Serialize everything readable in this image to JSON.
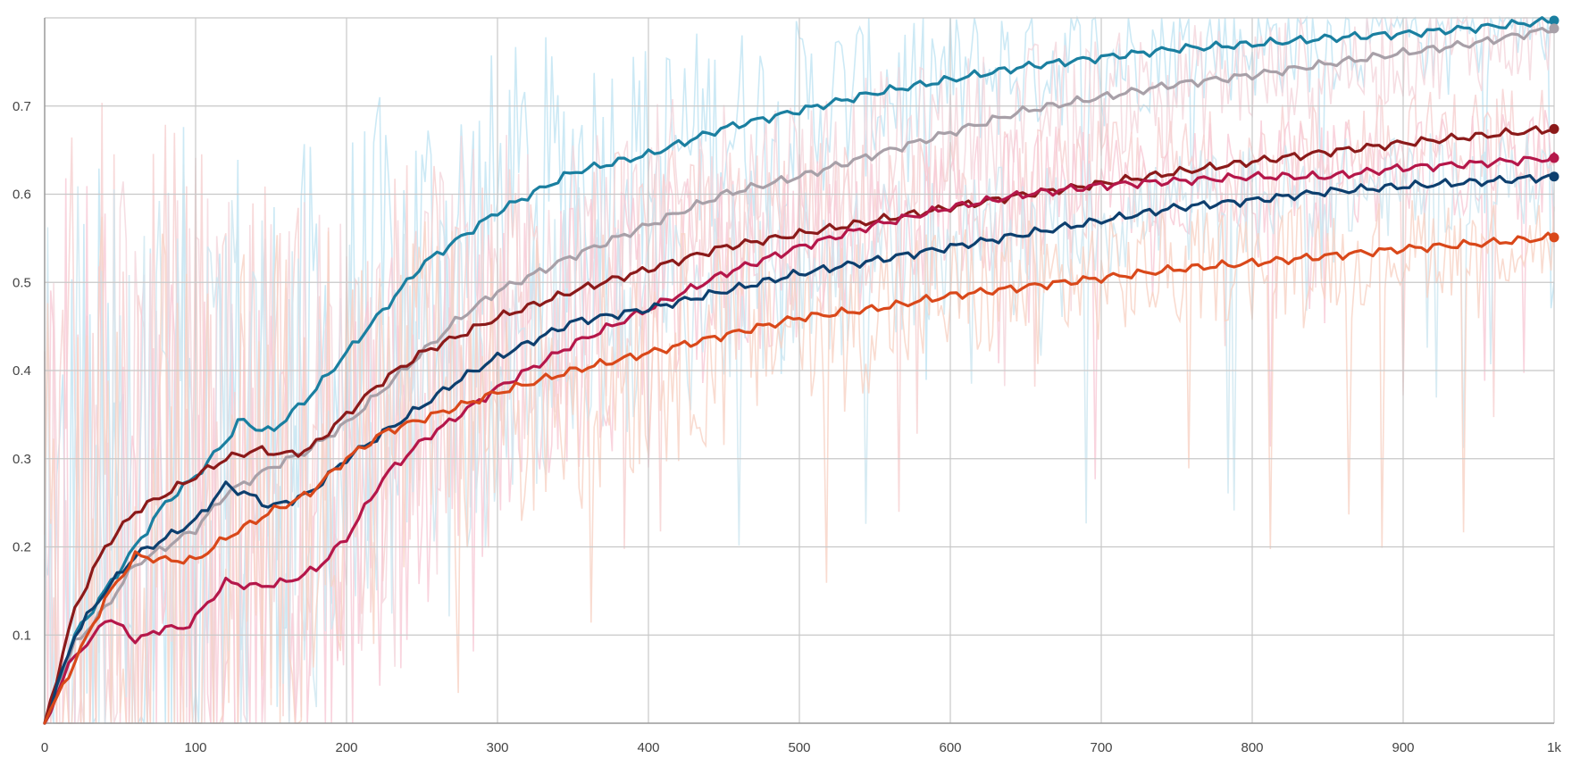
{
  "chart_data": {
    "type": "line",
    "title": "",
    "xlabel": "",
    "ylabel": "",
    "xlim": [
      0,
      1000
    ],
    "ylim": [
      0,
      0.8
    ],
    "grid": true,
    "legend": "none",
    "x_ticks": [
      0,
      100,
      200,
      300,
      400,
      500,
      600,
      700,
      800,
      900,
      1000
    ],
    "x_tick_labels": [
      "0",
      "100",
      "200",
      "300",
      "400",
      "500",
      "600",
      "700",
      "800",
      "900",
      "1k"
    ],
    "y_ticks": [
      0.1,
      0.2,
      0.3,
      0.4,
      0.5,
      0.6,
      0.7
    ],
    "y_tick_labels": [
      "0.1",
      "0.2",
      "0.3",
      "0.4",
      "0.5",
      "0.6",
      "0.7"
    ],
    "series": [
      {
        "color": "#1a7fa0",
        "raw_color": "#bfe3f2",
        "x": [
          0,
          20,
          40,
          60,
          80,
          100,
          120,
          130,
          140,
          150,
          175,
          200,
          225,
          250,
          275,
          300,
          350,
          400,
          450,
          500,
          550,
          600,
          650,
          700,
          750,
          800,
          850,
          900,
          950,
          1000
        ],
        "y": [
          0,
          0.1,
          0.15,
          0.2,
          0.25,
          0.28,
          0.32,
          0.345,
          0.335,
          0.33,
          0.37,
          0.42,
          0.47,
          0.52,
          0.55,
          0.58,
          0.625,
          0.645,
          0.675,
          0.695,
          0.715,
          0.73,
          0.745,
          0.755,
          0.765,
          0.77,
          0.777,
          0.782,
          0.789,
          0.797
        ]
      },
      {
        "color": "#a8a0a8",
        "raw_color": "#f4d6dc",
        "x": [
          0,
          20,
          40,
          60,
          80,
          100,
          120,
          150,
          175,
          200,
          225,
          250,
          275,
          300,
          350,
          400,
          450,
          500,
          550,
          600,
          650,
          700,
          750,
          800,
          850,
          900,
          950,
          1000
        ],
        "y": [
          0,
          0.09,
          0.13,
          0.18,
          0.2,
          0.22,
          0.26,
          0.29,
          0.31,
          0.34,
          0.38,
          0.42,
          0.46,
          0.49,
          0.53,
          0.565,
          0.6,
          0.62,
          0.645,
          0.67,
          0.695,
          0.71,
          0.725,
          0.735,
          0.748,
          0.76,
          0.772,
          0.788
        ]
      },
      {
        "color": "#8b1a1a",
        "raw_color": "#f6cfcf",
        "x": [
          0,
          20,
          40,
          60,
          80,
          100,
          120,
          140,
          160,
          175,
          200,
          225,
          250,
          275,
          300,
          350,
          400,
          450,
          500,
          550,
          600,
          650,
          700,
          750,
          800,
          850,
          900,
          950,
          1000
        ],
        "y": [
          0,
          0.13,
          0.2,
          0.24,
          0.26,
          0.28,
          0.3,
          0.31,
          0.305,
          0.31,
          0.35,
          0.39,
          0.42,
          0.44,
          0.46,
          0.49,
          0.515,
          0.54,
          0.555,
          0.57,
          0.585,
          0.6,
          0.612,
          0.625,
          0.637,
          0.648,
          0.658,
          0.666,
          0.674
        ]
      },
      {
        "color": "#b5174a",
        "raw_color": "#f8c9d6",
        "x": [
          0,
          20,
          30,
          40,
          50,
          60,
          70,
          80,
          90,
          100,
          120,
          140,
          160,
          180,
          200,
          225,
          250,
          275,
          300,
          350,
          400,
          450,
          500,
          550,
          600,
          650,
          700,
          750,
          800,
          850,
          900,
          950,
          1000
        ],
        "y": [
          0,
          0.08,
          0.09,
          0.12,
          0.11,
          0.095,
          0.1,
          0.11,
          0.105,
          0.12,
          0.16,
          0.155,
          0.16,
          0.175,
          0.21,
          0.28,
          0.32,
          0.35,
          0.38,
          0.43,
          0.47,
          0.51,
          0.54,
          0.565,
          0.585,
          0.6,
          0.61,
          0.615,
          0.62,
          0.62,
          0.63,
          0.635,
          0.641
        ]
      },
      {
        "color": "#0d3f6e",
        "raw_color": "#cde6f0",
        "x": [
          0,
          20,
          40,
          60,
          80,
          100,
          120,
          140,
          150,
          175,
          200,
          225,
          250,
          275,
          300,
          350,
          400,
          450,
          500,
          550,
          600,
          650,
          700,
          750,
          800,
          850,
          900,
          950,
          1000
        ],
        "y": [
          0,
          0.1,
          0.15,
          0.19,
          0.21,
          0.23,
          0.27,
          0.255,
          0.245,
          0.26,
          0.3,
          0.33,
          0.36,
          0.39,
          0.415,
          0.455,
          0.47,
          0.49,
          0.51,
          0.525,
          0.54,
          0.555,
          0.57,
          0.585,
          0.593,
          0.603,
          0.609,
          0.614,
          0.62
        ]
      },
      {
        "color": "#d9481a",
        "raw_color": "#f7d2c4",
        "x": [
          0,
          20,
          40,
          60,
          80,
          100,
          120,
          150,
          175,
          200,
          225,
          250,
          275,
          300,
          350,
          400,
          450,
          500,
          550,
          600,
          650,
          700,
          750,
          800,
          850,
          900,
          950,
          1000
        ],
        "y": [
          0,
          0.07,
          0.14,
          0.19,
          0.185,
          0.185,
          0.21,
          0.24,
          0.26,
          0.3,
          0.33,
          0.345,
          0.36,
          0.375,
          0.4,
          0.42,
          0.44,
          0.46,
          0.47,
          0.485,
          0.495,
          0.505,
          0.515,
          0.522,
          0.53,
          0.538,
          0.544,
          0.551
        ]
      }
    ]
  }
}
